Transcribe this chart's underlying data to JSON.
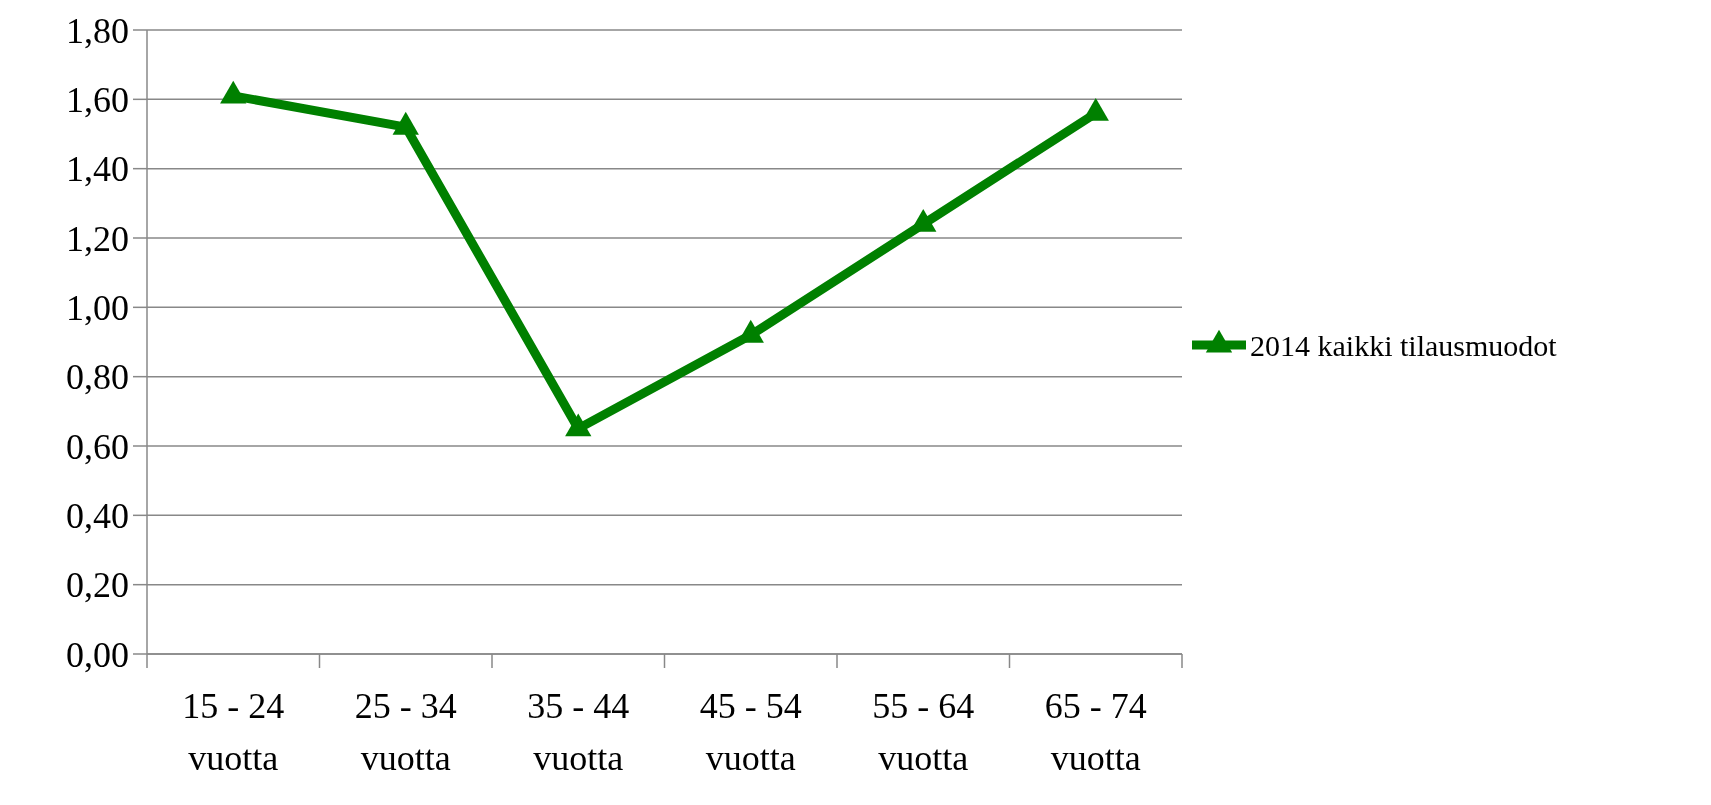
{
  "chart_data": {
    "type": "line",
    "categories": [
      "15 - 24 vuotta",
      "25 - 34 vuotta",
      "35 - 44 vuotta",
      "45 - 54 vuotta",
      "55 - 64 vuotta",
      "65 - 74 vuotta"
    ],
    "series": [
      {
        "name": "2014 kaikki tilausmuodot",
        "color": "#008000",
        "values": [
          1.61,
          1.52,
          0.65,
          0.92,
          1.24,
          1.56
        ]
      }
    ],
    "ylim": [
      0,
      1.8
    ],
    "yticks": [
      {
        "value": 0,
        "label": "0,00"
      },
      {
        "value": 0.2,
        "label": "0,20"
      },
      {
        "value": 0.4,
        "label": "0,40"
      },
      {
        "value": 0.6,
        "label": "0,60"
      },
      {
        "value": 0.8,
        "label": "0,80"
      },
      {
        "value": 1,
        "label": "1,00"
      },
      {
        "value": 1.2,
        "label": "1,20"
      },
      {
        "value": 1.4,
        "label": "1,40"
      },
      {
        "value": 1.6,
        "label": "1,60"
      },
      {
        "value": 1.8,
        "label": "1,80"
      }
    ],
    "grid": "y",
    "legend": "right",
    "marker": "triangle",
    "line_style": "solid"
  }
}
